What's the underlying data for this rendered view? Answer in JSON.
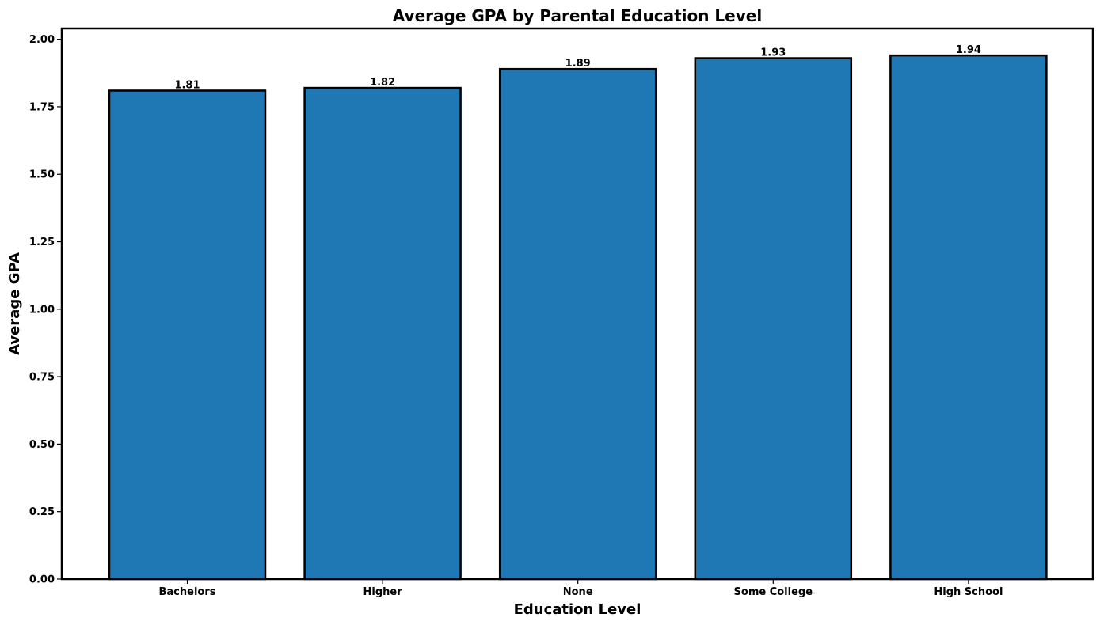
{
  "chart_data": {
    "type": "bar",
    "title": "Average GPA by Parental Education Level",
    "xlabel": "Education Level",
    "ylabel": "Average GPA",
    "categories": [
      "Bachelors",
      "Higher",
      "None",
      "Some College",
      "High School"
    ],
    "values": [
      1.81,
      1.82,
      1.89,
      1.93,
      1.94
    ],
    "value_labels": [
      "1.81",
      "1.82",
      "1.89",
      "1.93",
      "1.94"
    ],
    "ylim": [
      0,
      2.04
    ],
    "yticks": [
      0.0,
      0.25,
      0.5,
      0.75,
      1.0,
      1.25,
      1.5,
      1.75,
      2.0
    ],
    "ytick_labels": [
      "0.00",
      "0.25",
      "0.50",
      "0.75",
      "1.00",
      "1.25",
      "1.50",
      "1.75",
      "2.00"
    ],
    "grid": false,
    "bar_color": "#1f77b4",
    "edge_color": "#000000"
  }
}
